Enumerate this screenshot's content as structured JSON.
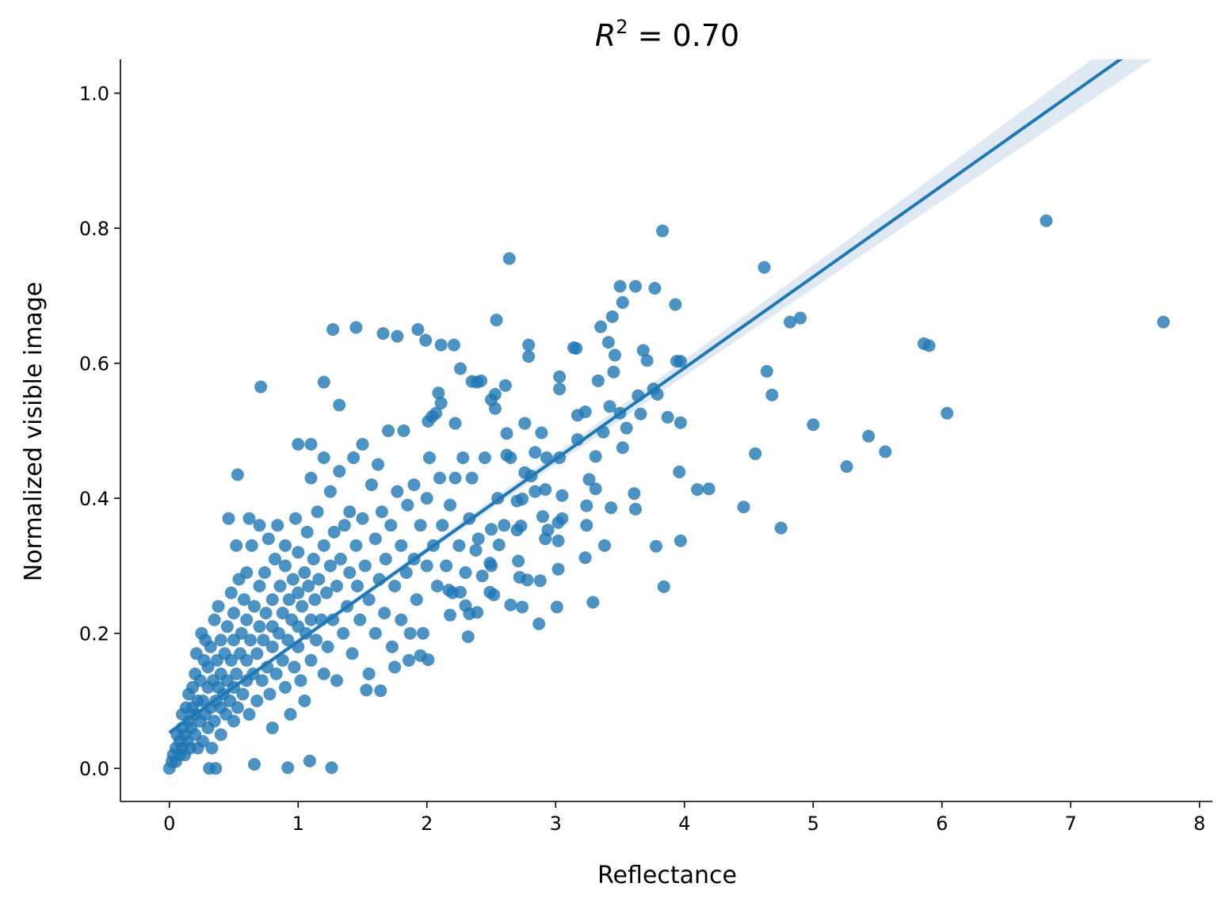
{
  "chart_data": {
    "type": "scatter",
    "title": "R² = 0.70",
    "title_var": "R",
    "title_sup": "2",
    "title_rest": " = 0.70",
    "xlabel": "Reflectance",
    "ylabel": "Normalized visible image",
    "xlim": [
      -0.38,
      8.1
    ],
    "ylim": [
      -0.049,
      1.05
    ],
    "xticks": [
      0,
      1,
      2,
      3,
      4,
      5,
      6,
      7,
      8
    ],
    "xtick_labels": [
      "0",
      "1",
      "2",
      "3",
      "4",
      "5",
      "6",
      "7",
      "8"
    ],
    "yticks": [
      0.0,
      0.2,
      0.4,
      0.6,
      0.8,
      1.0
    ],
    "ytick_labels": [
      "0.0",
      "0.2",
      "0.4",
      "0.6",
      "0.8",
      "1.0"
    ],
    "grid": false,
    "point_color": "#1f77b4",
    "line_color": "#1f77b4",
    "ci_color": "#dce8f3",
    "regression": {
      "intercept": 0.053,
      "slope": 0.135,
      "x_range": [
        0,
        7.72
      ],
      "ci_halfwidth_end": 0.03
    },
    "points": [
      [
        6.81,
        0.811
      ],
      [
        7.72,
        0.661
      ],
      [
        3.83,
        0.796
      ],
      [
        2.64,
        0.755
      ],
      [
        4.62,
        0.742
      ],
      [
        5.86,
        0.629
      ],
      [
        5.9,
        0.626
      ],
      [
        6.04,
        0.526
      ],
      [
        4.82,
        0.661
      ],
      [
        4.9,
        0.667
      ],
      [
        4.64,
        0.588
      ],
      [
        4.68,
        0.553
      ],
      [
        5.0,
        0.509
      ],
      [
        5.43,
        0.492
      ],
      [
        5.56,
        0.469
      ],
      [
        5.26,
        0.447
      ],
      [
        4.55,
        0.466
      ],
      [
        4.46,
        0.387
      ],
      [
        4.75,
        0.356
      ],
      [
        4.1,
        0.413
      ],
      [
        4.19,
        0.414
      ],
      [
        3.96,
        0.439
      ],
      [
        3.97,
        0.337
      ],
      [
        3.78,
        0.329
      ],
      [
        3.84,
        0.269
      ],
      [
        3.5,
        0.714
      ],
      [
        3.62,
        0.714
      ],
      [
        3.77,
        0.711
      ],
      [
        3.93,
        0.687
      ],
      [
        3.94,
        0.603
      ],
      [
        3.97,
        0.603
      ],
      [
        3.87,
        0.52
      ],
      [
        3.97,
        0.512
      ],
      [
        3.76,
        0.562
      ],
      [
        3.79,
        0.554
      ],
      [
        3.64,
        0.552
      ],
      [
        3.52,
        0.69
      ],
      [
        3.44,
        0.669
      ],
      [
        3.35,
        0.654
      ],
      [
        3.41,
        0.631
      ],
      [
        3.46,
        0.612
      ],
      [
        3.45,
        0.587
      ],
      [
        3.68,
        0.619
      ],
      [
        3.71,
        0.604
      ],
      [
        3.33,
        0.574
      ],
      [
        3.42,
        0.536
      ],
      [
        3.5,
        0.526
      ],
      [
        3.55,
        0.504
      ],
      [
        3.66,
        0.525
      ],
      [
        3.52,
        0.475
      ],
      [
        3.61,
        0.407
      ],
      [
        3.62,
        0.384
      ],
      [
        3.43,
        0.386
      ],
      [
        3.38,
        0.33
      ],
      [
        3.29,
        0.246
      ],
      [
        3.23,
        0.312
      ],
      [
        3.24,
        0.36
      ],
      [
        3.24,
        0.389
      ],
      [
        3.26,
        0.428
      ],
      [
        3.31,
        0.414
      ],
      [
        3.31,
        0.462
      ],
      [
        3.37,
        0.498
      ],
      [
        3.23,
        0.528
      ],
      [
        3.17,
        0.523
      ],
      [
        3.17,
        0.487
      ],
      [
        3.16,
        0.622
      ],
      [
        3.14,
        0.623
      ],
      [
        3.03,
        0.58
      ],
      [
        3.03,
        0.562
      ],
      [
        3.03,
        0.46
      ],
      [
        3.05,
        0.404
      ],
      [
        3.05,
        0.37
      ],
      [
        3.02,
        0.364
      ],
      [
        3.02,
        0.337
      ],
      [
        3.02,
        0.295
      ],
      [
        3.01,
        0.239
      ],
      [
        2.92,
        0.34
      ],
      [
        2.94,
        0.353
      ],
      [
        2.9,
        0.373
      ],
      [
        2.89,
        0.497
      ],
      [
        2.93,
        0.46
      ],
      [
        2.88,
        0.278
      ],
      [
        2.87,
        0.214
      ],
      [
        2.79,
        0.627
      ],
      [
        2.79,
        0.61
      ],
      [
        2.62,
        0.496
      ],
      [
        2.62,
        0.464
      ],
      [
        2.65,
        0.46
      ],
      [
        2.76,
        0.511
      ],
      [
        2.84,
        0.468
      ],
      [
        2.54,
        0.664
      ],
      [
        2.61,
        0.567
      ],
      [
        2.53,
        0.554
      ],
      [
        2.53,
        0.533
      ],
      [
        2.5,
        0.546
      ],
      [
        2.39,
        0.572
      ],
      [
        2.42,
        0.574
      ],
      [
        2.35,
        0.573
      ],
      [
        2.26,
        0.592
      ],
      [
        2.09,
        0.556
      ],
      [
        2.11,
        0.541
      ],
      [
        2.07,
        0.526
      ],
      [
        2.04,
        0.521
      ],
      [
        2.01,
        0.514
      ],
      [
        2.21,
        0.627
      ],
      [
        2.11,
        0.627
      ],
      [
        1.99,
        0.634
      ],
      [
        1.93,
        0.65
      ],
      [
        1.77,
        0.64
      ],
      [
        1.66,
        0.644
      ],
      [
        1.45,
        0.653
      ],
      [
        1.27,
        0.65
      ],
      [
        2.22,
        0.511
      ],
      [
        1.2,
        0.572
      ],
      [
        1.32,
        0.538
      ],
      [
        0.71,
        0.565
      ],
      [
        0.53,
        0.435
      ],
      [
        2.74,
        0.239
      ],
      [
        2.65,
        0.242
      ],
      [
        2.32,
        0.195
      ],
      [
        2.39,
        0.231
      ],
      [
        2.01,
        0.161
      ],
      [
        1.95,
        0.167
      ],
      [
        1.86,
        0.16
      ],
      [
        1.75,
        0.15
      ],
      [
        1.64,
        0.115
      ],
      [
        1.53,
        0.116
      ],
      [
        1.26,
        0.001
      ],
      [
        1.09,
        0.011
      ],
      [
        0.92,
        0.001
      ],
      [
        0.66,
        0.006
      ],
      [
        0.36,
        0.0
      ],
      [
        0.31,
        0.0
      ],
      [
        0.0,
        0.0
      ],
      [
        2.43,
        0.285
      ],
      [
        2.49,
        0.261
      ],
      [
        2.52,
        0.257
      ],
      [
        2.38,
        0.323
      ],
      [
        2.49,
        0.304
      ],
      [
        2.56,
        0.331
      ],
      [
        2.5,
        0.354
      ],
      [
        2.71,
        0.307
      ],
      [
        2.72,
        0.283
      ],
      [
        2.78,
        0.279
      ],
      [
        2.7,
        0.353
      ],
      [
        2.73,
        0.359
      ],
      [
        2.7,
        0.396
      ],
      [
        2.74,
        0.399
      ],
      [
        2.84,
        0.41
      ],
      [
        2.92,
        0.413
      ],
      [
        2.81,
        0.433
      ],
      [
        2.76,
        0.438
      ],
      [
        2.26,
        0.261
      ],
      [
        2.17,
        0.264
      ],
      [
        2.18,
        0.227
      ],
      [
        2.3,
        0.241
      ],
      [
        2.33,
        0.229
      ],
      [
        0.02,
        0.01
      ],
      [
        0.03,
        0.02
      ],
      [
        0.05,
        0.01
      ],
      [
        0.05,
        0.03
      ],
      [
        0.06,
        0.05
      ],
      [
        0.08,
        0.02
      ],
      [
        0.08,
        0.04
      ],
      [
        0.1,
        0.06
      ],
      [
        0.1,
        0.03
      ],
      [
        0.1,
        0.08
      ],
      [
        0.12,
        0.02
      ],
      [
        0.12,
        0.05
      ],
      [
        0.13,
        0.09
      ],
      [
        0.14,
        0.04
      ],
      [
        0.15,
        0.07
      ],
      [
        0.15,
        0.11
      ],
      [
        0.16,
        0.03
      ],
      [
        0.17,
        0.06
      ],
      [
        0.18,
        0.09
      ],
      [
        0.18,
        0.12
      ],
      [
        0.2,
        0.05
      ],
      [
        0.2,
        0.08
      ],
      [
        0.2,
        0.14
      ],
      [
        0.21,
        0.17
      ],
      [
        0.22,
        0.03
      ],
      [
        0.22,
        0.1
      ],
      [
        0.24,
        0.07
      ],
      [
        0.24,
        0.13
      ],
      [
        0.25,
        0.2
      ],
      [
        0.26,
        0.04
      ],
      [
        0.26,
        0.1
      ],
      [
        0.27,
        0.16
      ],
      [
        0.28,
        0.08
      ],
      [
        0.28,
        0.19
      ],
      [
        0.3,
        0.06
      ],
      [
        0.3,
        0.12
      ],
      [
        0.3,
        0.15
      ],
      [
        0.32,
        0.09
      ],
      [
        0.32,
        0.18
      ],
      [
        0.33,
        0.03
      ],
      [
        0.34,
        0.13
      ],
      [
        0.35,
        0.07
      ],
      [
        0.35,
        0.22
      ],
      [
        0.36,
        0.1
      ],
      [
        0.37,
        0.16
      ],
      [
        0.38,
        0.12
      ],
      [
        0.38,
        0.24
      ],
      [
        0.4,
        0.05
      ],
      [
        0.4,
        0.09
      ],
      [
        0.4,
        0.14
      ],
      [
        0.4,
        0.19
      ],
      [
        0.42,
        0.11
      ],
      [
        0.43,
        0.17
      ],
      [
        0.44,
        0.08
      ],
      [
        0.45,
        0.21
      ],
      [
        0.45,
        0.13
      ],
      [
        0.46,
        0.37
      ],
      [
        0.47,
        0.1
      ],
      [
        0.48,
        0.26
      ],
      [
        0.48,
        0.16
      ],
      [
        0.5,
        0.07
      ],
      [
        0.5,
        0.12
      ],
      [
        0.5,
        0.19
      ],
      [
        0.5,
        0.23
      ],
      [
        0.52,
        0.33
      ],
      [
        0.52,
        0.14
      ],
      [
        0.53,
        0.09
      ],
      [
        0.54,
        0.28
      ],
      [
        0.55,
        0.17
      ],
      [
        0.56,
        0.2
      ],
      [
        0.57,
        0.11
      ],
      [
        0.58,
        0.25
      ],
      [
        0.6,
        0.13
      ],
      [
        0.6,
        0.16
      ],
      [
        0.6,
        0.22
      ],
      [
        0.6,
        0.29
      ],
      [
        0.62,
        0.08
      ],
      [
        0.62,
        0.37
      ],
      [
        0.63,
        0.19
      ],
      [
        0.64,
        0.33
      ],
      [
        0.65,
        0.14
      ],
      [
        0.66,
        0.24
      ],
      [
        0.68,
        0.1
      ],
      [
        0.68,
        0.17
      ],
      [
        0.7,
        0.21
      ],
      [
        0.7,
        0.27
      ],
      [
        0.7,
        0.36
      ],
      [
        0.72,
        0.13
      ],
      [
        0.73,
        0.19
      ],
      [
        0.74,
        0.29
      ],
      [
        0.75,
        0.23
      ],
      [
        0.76,
        0.15
      ],
      [
        0.77,
        0.34
      ],
      [
        0.78,
        0.11
      ],
      [
        0.8,
        0.18
      ],
      [
        0.8,
        0.25
      ],
      [
        0.8,
        0.21
      ],
      [
        0.8,
        0.06
      ],
      [
        0.82,
        0.31
      ],
      [
        0.83,
        0.14
      ],
      [
        0.84,
        0.36
      ],
      [
        0.85,
        0.2
      ],
      [
        0.86,
        0.27
      ],
      [
        0.88,
        0.16
      ],
      [
        0.88,
        0.23
      ],
      [
        0.9,
        0.3
      ],
      [
        0.9,
        0.12
      ],
      [
        0.9,
        0.33
      ],
      [
        0.92,
        0.19
      ],
      [
        0.93,
        0.25
      ],
      [
        0.94,
        0.08
      ],
      [
        0.95,
        0.22
      ],
      [
        0.96,
        0.28
      ],
      [
        0.97,
        0.15
      ],
      [
        0.98,
        0.37
      ],
      [
        1.0,
        0.18
      ],
      [
        1.0,
        0.21
      ],
      [
        1.0,
        0.26
      ],
      [
        1.0,
        0.32
      ],
      [
        1.0,
        0.48
      ],
      [
        1.02,
        0.13
      ],
      [
        1.03,
        0.24
      ],
      [
        1.05,
        0.29
      ],
      [
        1.05,
        0.1
      ],
      [
        1.06,
        0.2
      ],
      [
        1.07,
        0.35
      ],
      [
        1.08,
        0.27
      ],
      [
        1.1,
        0.16
      ],
      [
        1.1,
        0.22
      ],
      [
        1.1,
        0.43
      ],
      [
        1.1,
        0.48
      ],
      [
        1.12,
        0.31
      ],
      [
        1.13,
        0.25
      ],
      [
        1.14,
        0.19
      ],
      [
        1.15,
        0.38
      ],
      [
        1.16,
        0.28
      ],
      [
        1.18,
        0.22
      ],
      [
        1.2,
        0.14
      ],
      [
        1.2,
        0.33
      ],
      [
        1.2,
        0.46
      ],
      [
        1.22,
        0.26
      ],
      [
        1.23,
        0.18
      ],
      [
        1.25,
        0.3
      ],
      [
        1.25,
        0.41
      ],
      [
        1.27,
        0.22
      ],
      [
        1.28,
        0.35
      ],
      [
        1.3,
        0.13
      ],
      [
        1.3,
        0.27
      ],
      [
        1.32,
        0.44
      ],
      [
        1.33,
        0.31
      ],
      [
        1.35,
        0.2
      ],
      [
        1.36,
        0.36
      ],
      [
        1.38,
        0.24
      ],
      [
        1.4,
        0.29
      ],
      [
        1.4,
        0.38
      ],
      [
        1.42,
        0.17
      ],
      [
        1.43,
        0.46
      ],
      [
        1.45,
        0.33
      ],
      [
        1.46,
        0.27
      ],
      [
        1.48,
        0.22
      ],
      [
        1.5,
        0.37
      ],
      [
        1.5,
        0.48
      ],
      [
        1.52,
        0.3
      ],
      [
        1.55,
        0.14
      ],
      [
        1.55,
        0.25
      ],
      [
        1.57,
        0.42
      ],
      [
        1.6,
        0.34
      ],
      [
        1.6,
        0.2
      ],
      [
        1.62,
        0.45
      ],
      [
        1.63,
        0.28
      ],
      [
        1.65,
        0.38
      ],
      [
        1.67,
        0.23
      ],
      [
        1.68,
        0.31
      ],
      [
        1.7,
        0.5
      ],
      [
        1.72,
        0.36
      ],
      [
        1.73,
        0.18
      ],
      [
        1.75,
        0.27
      ],
      [
        1.77,
        0.41
      ],
      [
        1.8,
        0.33
      ],
      [
        1.8,
        0.22
      ],
      [
        1.82,
        0.5
      ],
      [
        1.84,
        0.29
      ],
      [
        1.85,
        0.39
      ],
      [
        1.87,
        0.2
      ],
      [
        1.9,
        0.31
      ],
      [
        1.9,
        0.42
      ],
      [
        1.92,
        0.25
      ],
      [
        1.95,
        0.36
      ],
      [
        1.97,
        0.2
      ],
      [
        2.0,
        0.3
      ],
      [
        2.0,
        0.4
      ],
      [
        2.02,
        0.46
      ],
      [
        2.05,
        0.33
      ],
      [
        2.08,
        0.27
      ],
      [
        2.1,
        0.43
      ],
      [
        2.12,
        0.36
      ],
      [
        2.15,
        0.3
      ],
      [
        2.18,
        0.39
      ],
      [
        2.2,
        0.26
      ],
      [
        2.22,
        0.43
      ],
      [
        2.25,
        0.33
      ],
      [
        2.28,
        0.46
      ],
      [
        2.3,
        0.29
      ],
      [
        2.33,
        0.37
      ],
      [
        2.35,
        0.43
      ],
      [
        2.4,
        0.34
      ],
      [
        2.45,
        0.46
      ],
      [
        2.5,
        0.3
      ],
      [
        2.55,
        0.4
      ],
      [
        2.6,
        0.36
      ]
    ]
  }
}
